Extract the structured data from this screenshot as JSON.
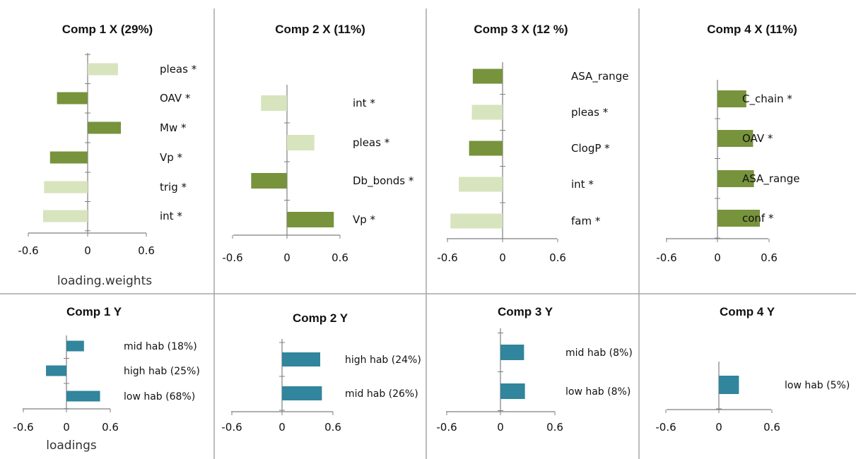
{
  "colors": {
    "sig_dark_green": "#77933c",
    "light_green": "#d7e4bd",
    "teal": "#31859c",
    "divider": "#a6a6a6",
    "axis": "#7f7f7f"
  },
  "chart_data": [
    {
      "type": "bar",
      "orientation": "horizontal",
      "title": "Comp 1 X (29%)",
      "xlabel": "loading.weights",
      "xlim": [
        -0.6,
        0.6
      ],
      "xticks": [
        "-0.6",
        "0",
        "0.6"
      ],
      "categories": [
        "pleas *",
        "OAV *",
        "Mw *",
        "Vp *",
        "trig *",
        "int *"
      ],
      "values": [
        0.31,
        -0.31,
        0.34,
        -0.38,
        -0.44,
        -0.45
      ],
      "bar_colors": [
        "light_green",
        "sig_dark_green",
        "sig_dark_green",
        "sig_dark_green",
        "light_green",
        "light_green"
      ]
    },
    {
      "type": "bar",
      "orientation": "horizontal",
      "title": "Comp 2 X (11%)",
      "xlabel": "",
      "xlim": [
        -0.6,
        0.6
      ],
      "xticks": [
        "-0.6",
        "0",
        "0.6"
      ],
      "categories": [
        "int *",
        "pleas *",
        "Db_bonds *",
        "Vp *"
      ],
      "values": [
        -0.29,
        0.31,
        -0.4,
        0.53
      ],
      "bar_colors": [
        "light_green",
        "light_green",
        "sig_dark_green",
        "sig_dark_green"
      ]
    },
    {
      "type": "bar",
      "orientation": "horizontal",
      "title": "Comp 3 X (12 %)",
      "xlabel": "",
      "xlim": [
        -0.6,
        0.6
      ],
      "xticks": [
        "-0.6",
        "0",
        "0.6"
      ],
      "categories": [
        "ASA_range",
        "pleas *",
        "ClogP *",
        "int *",
        "fam *"
      ],
      "values": [
        -0.32,
        -0.33,
        -0.36,
        -0.47,
        -0.56
      ],
      "bar_colors": [
        "sig_dark_green",
        "light_green",
        "sig_dark_green",
        "light_green",
        "light_green"
      ]
    },
    {
      "type": "bar",
      "orientation": "horizontal",
      "title": "Comp 4 X (11%)",
      "xlabel": "",
      "xlim": [
        -0.6,
        0.6
      ],
      "xticks": [
        "-0.6",
        "0",
        "0.6"
      ],
      "categories": [
        "C_chain *",
        "OAV *",
        "ASA_range",
        "conf *"
      ],
      "values": [
        0.34,
        0.42,
        0.43,
        0.5
      ],
      "bar_colors": [
        "sig_dark_green",
        "sig_dark_green",
        "sig_dark_green",
        "sig_dark_green"
      ]
    },
    {
      "type": "bar",
      "orientation": "horizontal",
      "title": "Comp 1 Y",
      "xlabel": "loadings",
      "xlim": [
        -0.6,
        0.6
      ],
      "xticks": [
        "-0.6",
        "0",
        "0.6"
      ],
      "categories": [
        "mid hab (18%)",
        "high hab (25%)",
        "low hab (68%)"
      ],
      "values": [
        0.24,
        -0.28,
        0.46
      ],
      "bar_colors": [
        "teal",
        "teal",
        "teal"
      ]
    },
    {
      "type": "bar",
      "orientation": "horizontal",
      "title": "Comp 2 Y",
      "xlabel": "",
      "xlim": [
        -0.6,
        0.6
      ],
      "xticks": [
        "-0.6",
        "0",
        "0.6"
      ],
      "categories": [
        "high hab (24%)",
        "mid hab (26%)"
      ],
      "values": [
        0.45,
        0.47
      ],
      "bar_colors": [
        "teal",
        "teal"
      ]
    },
    {
      "type": "bar",
      "orientation": "horizontal",
      "title": "Comp 3 Y",
      "xlabel": "",
      "xlim": [
        -0.6,
        0.6
      ],
      "xticks": [
        "-0.6",
        "0",
        "0.6"
      ],
      "categories": [
        "mid hab (8%)",
        "low hab (8%)"
      ],
      "values": [
        0.26,
        0.27
      ],
      "bar_colors": [
        "teal",
        "teal"
      ]
    },
    {
      "type": "bar",
      "orientation": "horizontal",
      "title": "Comp 4 Y",
      "xlabel": "",
      "xlim": [
        -0.6,
        0.6
      ],
      "xticks": [
        "-0.6",
        "0",
        "0.6"
      ],
      "categories": [
        "low hab (5%)"
      ],
      "values": [
        0.23
      ],
      "bar_colors": [
        "teal"
      ]
    }
  ]
}
